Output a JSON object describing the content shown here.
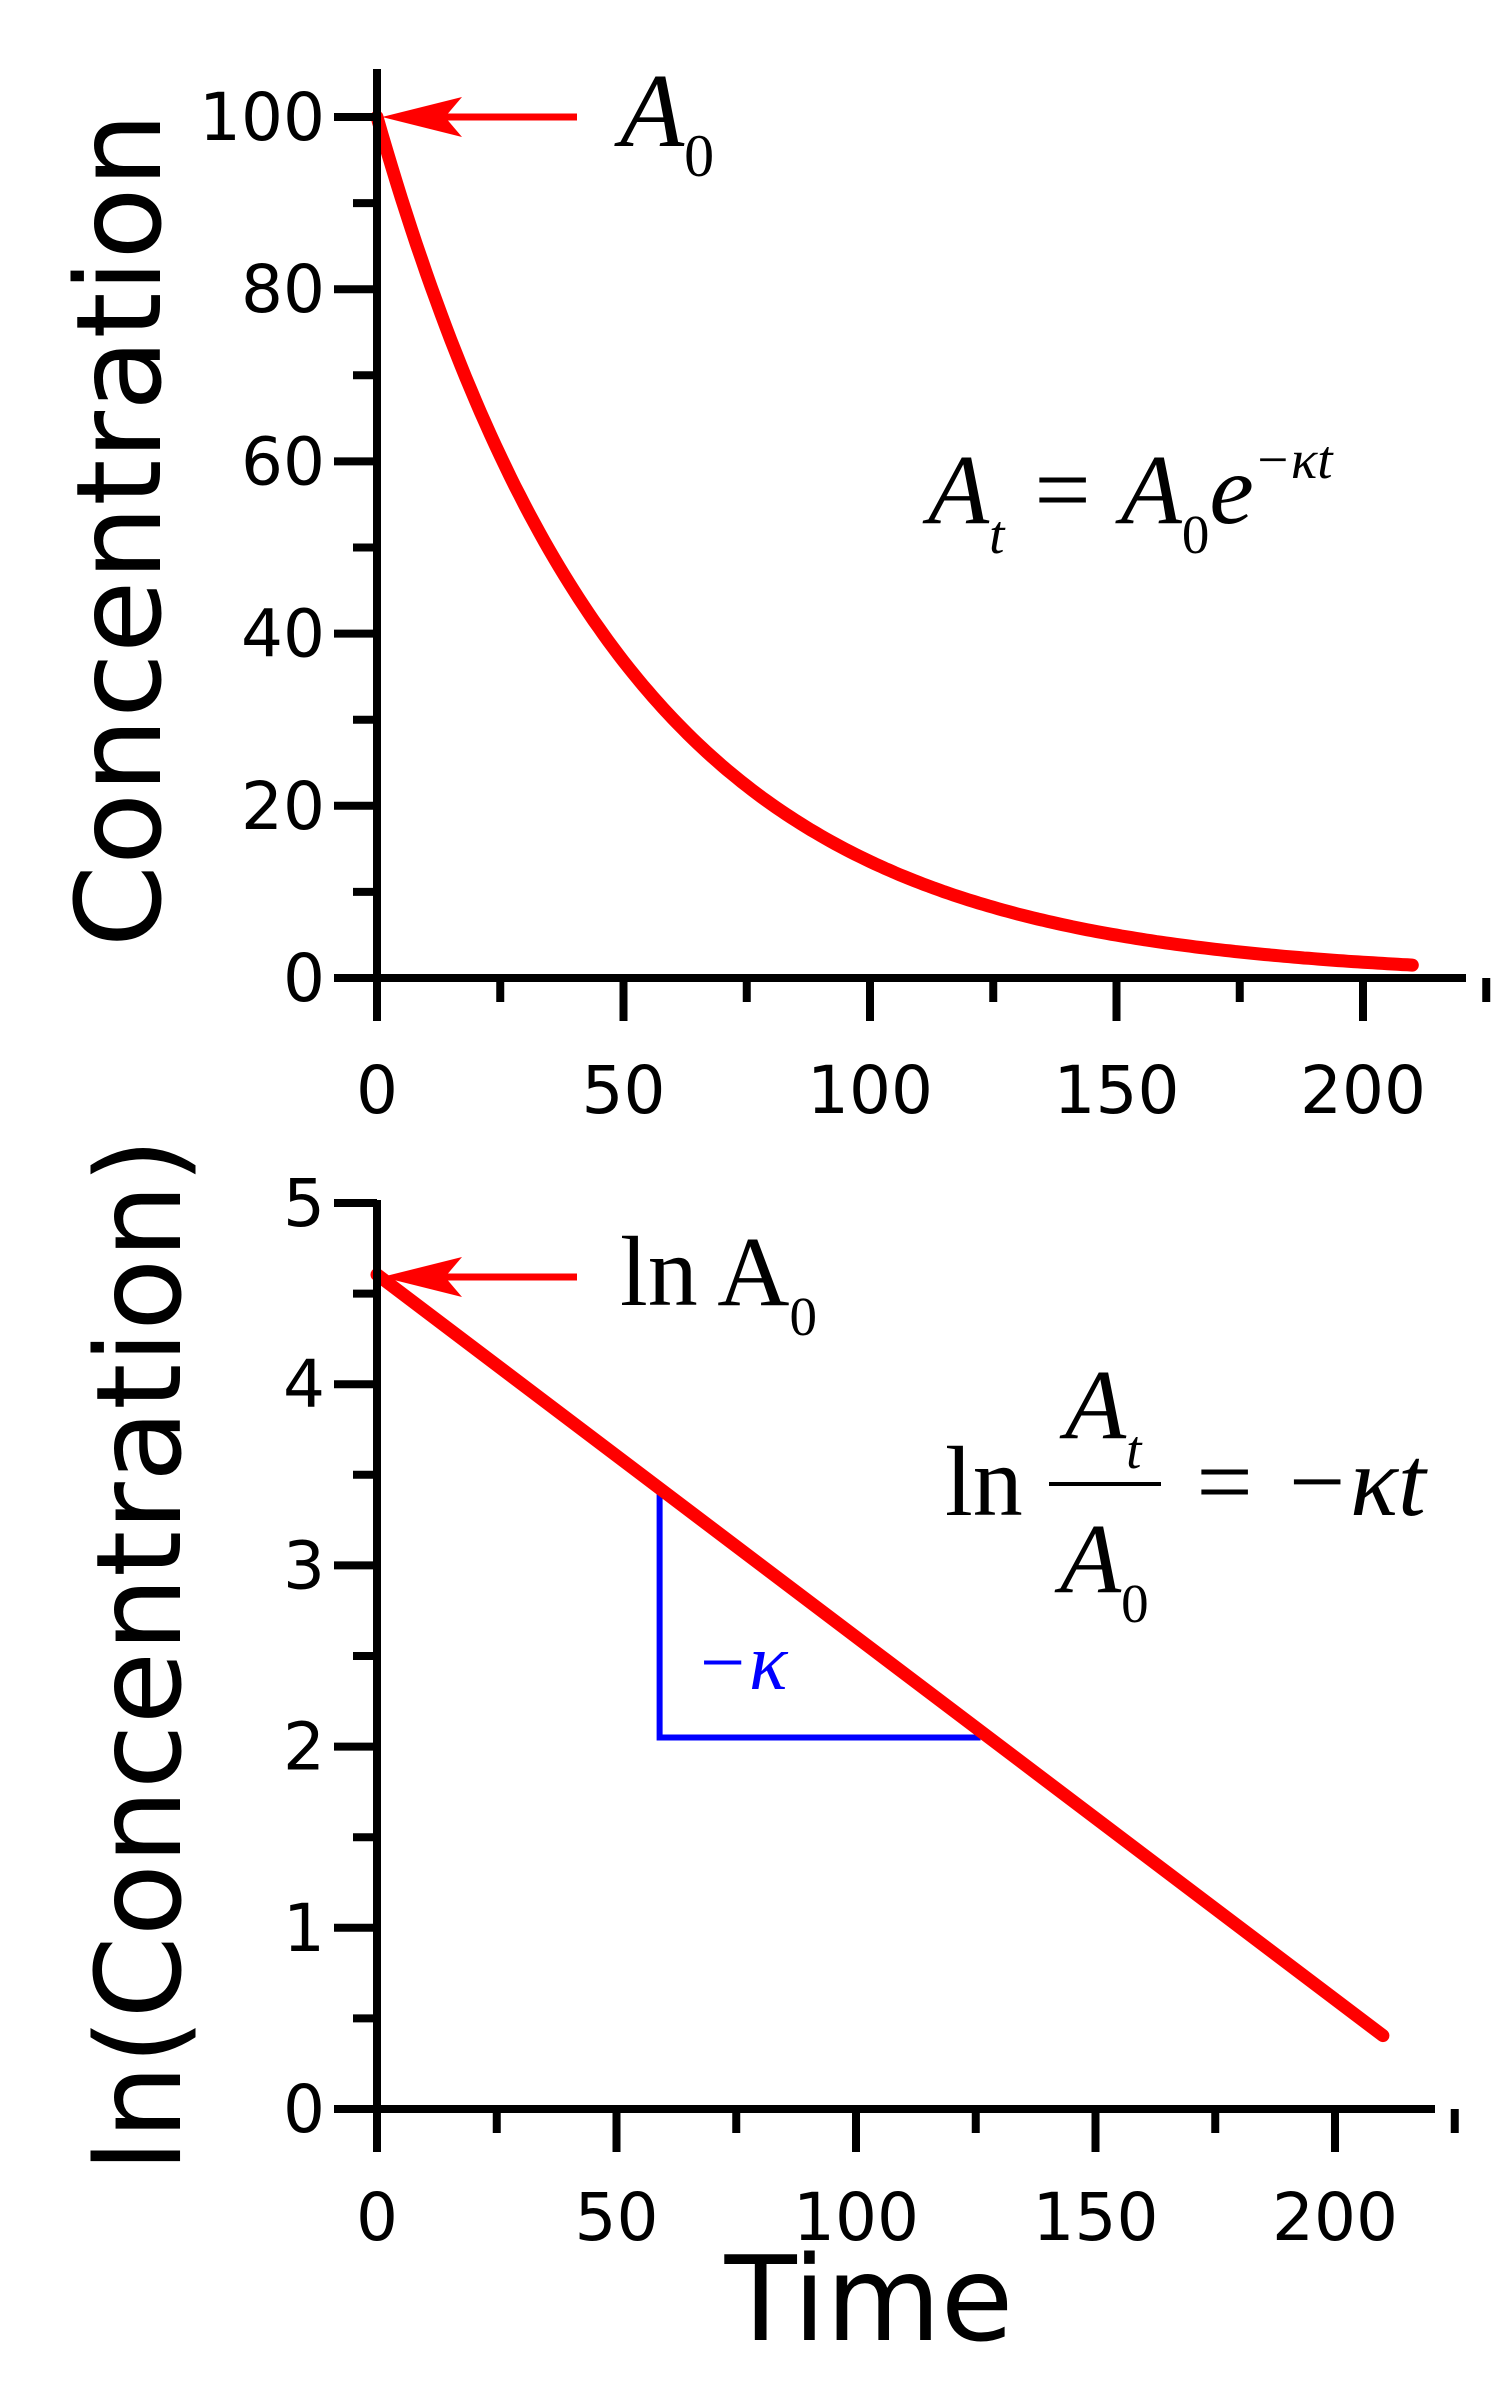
{
  "chart_data": [
    {
      "type": "line",
      "ylabel": "Concentration",
      "xlabel": "",
      "xlim": [
        0,
        220
      ],
      "ylim": [
        0,
        105
      ],
      "xticks": [
        "0",
        "50",
        "100",
        "150",
        "200"
      ],
      "yticks": [
        "0",
        "20",
        "40",
        "60",
        "80",
        "100"
      ],
      "grid": false,
      "series": [
        {
          "color": "#ff0000",
          "function": "100*exp(-0.02*t)",
          "x_range": [
            0,
            210
          ]
        }
      ],
      "annotations": {
        "arrow_label": "A",
        "arrow_label_sub": "0",
        "formula": {
          "lhs": "A",
          "lhs_sub": "t",
          "eq": "=",
          "rhs": "A",
          "rhs_sub": "0",
          "rhs_base": "e",
          "rhs_exp": "−κt"
        }
      }
    },
    {
      "type": "line",
      "ylabel": "ln(Concentration)",
      "xlabel": "Time",
      "xlim": [
        0,
        220
      ],
      "ylim": [
        0,
        5
      ],
      "xticks": [
        "0",
        "50",
        "100",
        "150",
        "200"
      ],
      "yticks": [
        "0",
        "1",
        "2",
        "3",
        "4",
        "5"
      ],
      "grid": false,
      "series": [
        {
          "color": "#ff0000",
          "x": [
            0,
            210
          ],
          "y": [
            4.605,
            0.405
          ]
        }
      ],
      "slope_triangle": {
        "color": "#0000ff",
        "x": [
          59,
          126
        ],
        "y": [
          2.05,
          3.42
        ],
        "label": "−κ"
      },
      "annotations": {
        "arrow_label": "ln A",
        "arrow_label_sub": "0",
        "formula": {
          "ln": "ln",
          "num": "A",
          "num_sub": "t",
          "den": "A",
          "den_sub": "0",
          "rhs": "= −κt"
        }
      }
    }
  ]
}
